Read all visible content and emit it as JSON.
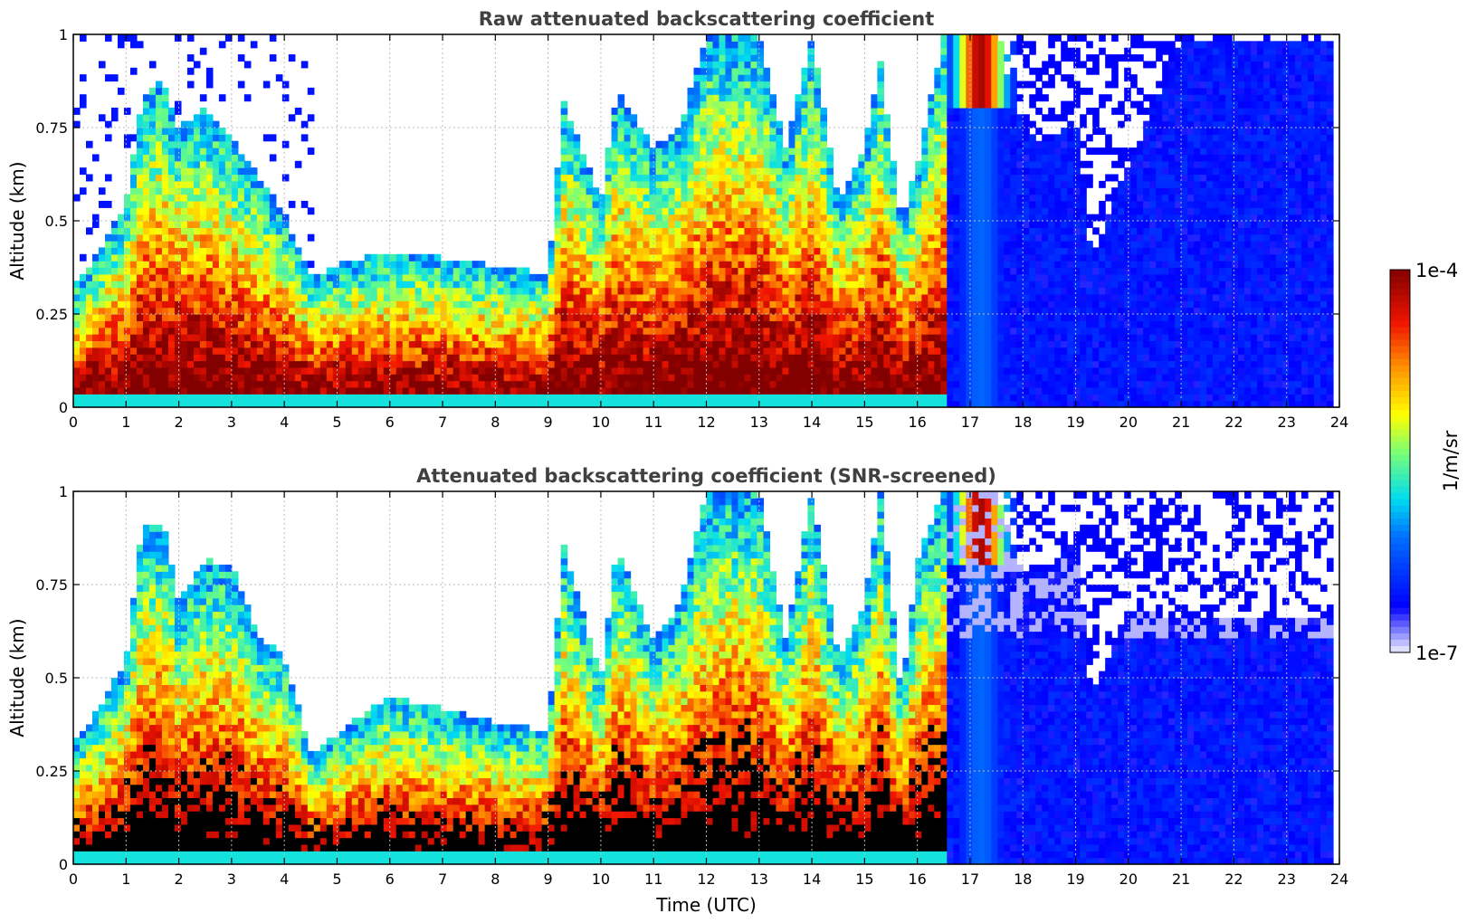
{
  "chart_data": [
    {
      "type": "heatmap",
      "title": "Raw attenuated backscattering coefficient",
      "xlabel": "",
      "ylabel": "Altitude (km)",
      "xlim": [
        0,
        24
      ],
      "ylim": [
        0,
        1
      ],
      "x_ticks": [
        "0",
        "1",
        "2",
        "3",
        "4",
        "5",
        "6",
        "7",
        "8",
        "9",
        "10",
        "11",
        "12",
        "13",
        "14",
        "15",
        "16",
        "17",
        "18",
        "19",
        "20",
        "21",
        "22",
        "23",
        "24"
      ],
      "y_ticks": [
        "0",
        "0.25",
        "0.5",
        "0.75",
        "1"
      ],
      "grid": true,
      "screening": "raw",
      "layer_top_km": {
        "hours": [
          0,
          0.5,
          1,
          1.3,
          1.7,
          2,
          2.5,
          3,
          3.5,
          4,
          4.5,
          5,
          6,
          7,
          8,
          9,
          9.3,
          10,
          10.3,
          11,
          11.5,
          12,
          12.5,
          13,
          13.5,
          14,
          14.5,
          15,
          15.3,
          15.7,
          16,
          16.5,
          17,
          17.5,
          18,
          18.5,
          19,
          19.3,
          20,
          21,
          22,
          23,
          23.8
        ],
        "values": [
          0.32,
          0.42,
          0.55,
          0.82,
          0.88,
          0.75,
          0.8,
          0.72,
          0.62,
          0.52,
          0.35,
          0.38,
          0.42,
          0.4,
          0.38,
          0.36,
          0.82,
          0.55,
          0.85,
          0.7,
          0.75,
          1.0,
          1.0,
          1.0,
          0.7,
          1.0,
          0.55,
          0.7,
          0.92,
          0.5,
          0.65,
          1.0,
          1.0,
          1.0,
          0.75,
          0.7,
          0.78,
          0.4,
          0.65,
          0.98,
          0.98,
          0.98,
          0.98
        ]
      },
      "colorbar": {
        "min_label": "1e-7",
        "max_label": "1e-4",
        "label": "1/m/sr",
        "scale": "log",
        "range": [
          1e-07,
          0.0001
        ]
      }
    },
    {
      "type": "heatmap",
      "title": "Attenuated backscattering coefficient (SNR-screened)",
      "xlabel": "Time (UTC)",
      "ylabel": "Altitude (km)",
      "xlim": [
        0,
        24
      ],
      "ylim": [
        0,
        1
      ],
      "x_ticks": [
        "0",
        "1",
        "2",
        "3",
        "4",
        "5",
        "6",
        "7",
        "8",
        "9",
        "10",
        "11",
        "12",
        "13",
        "14",
        "15",
        "16",
        "17",
        "18",
        "19",
        "20",
        "21",
        "22",
        "23",
        "24"
      ],
      "y_ticks": [
        "0",
        "0.25",
        "0.5",
        "0.75",
        "1"
      ],
      "grid": true,
      "screening": "snr",
      "layer_top_km": {
        "hours": [
          0,
          0.5,
          1,
          1.3,
          1.7,
          2,
          2.5,
          3,
          3.5,
          4,
          4.5,
          5,
          6,
          7,
          8,
          9,
          9.3,
          10,
          10.3,
          11,
          11.5,
          12,
          12.5,
          13,
          13.5,
          14,
          14.5,
          15,
          15.3,
          15.7,
          16,
          16.5,
          17,
          17.5,
          18,
          18.5,
          19,
          19.3,
          20,
          21,
          22,
          23,
          23.8
        ],
        "values": [
          0.32,
          0.42,
          0.55,
          0.9,
          0.92,
          0.7,
          0.82,
          0.8,
          0.62,
          0.55,
          0.3,
          0.35,
          0.45,
          0.42,
          0.38,
          0.36,
          0.85,
          0.5,
          0.85,
          0.6,
          0.7,
          1.0,
          1.0,
          1.0,
          0.6,
          1.0,
          0.55,
          0.7,
          1.0,
          0.45,
          0.82,
          1.0,
          1.0,
          1.0,
          0.78,
          0.8,
          0.88,
          0.45,
          0.68,
          0.66,
          0.66,
          0.66,
          0.66
        ]
      }
    }
  ]
}
